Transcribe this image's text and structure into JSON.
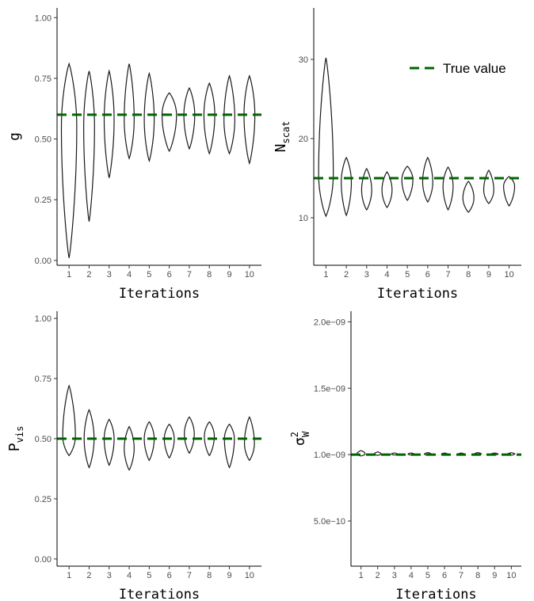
{
  "legend": {
    "label": "True value",
    "color": "#006400"
  },
  "colors": {
    "violin": "#1a1a1a",
    "true_line": "#006400",
    "axis": "#000000"
  },
  "chart_data": [
    {
      "type": "violin",
      "xlabel": "Iterations",
      "ylabel": {
        "main": "g",
        "sub": ""
      },
      "categories": [
        "1",
        "2",
        "3",
        "4",
        "5",
        "6",
        "7",
        "8",
        "9",
        "10"
      ],
      "ylim": [
        -0.02,
        1.04
      ],
      "yticks": [
        0.0,
        0.25,
        0.5,
        0.75,
        1.0
      ],
      "ytick_labels": [
        "0.00",
        "0.25",
        "0.50",
        "0.75",
        "1.00"
      ],
      "true_value": 0.6,
      "violins": [
        {
          "min": 0.01,
          "max": 0.81,
          "mode": 0.55,
          "width": 0.85
        },
        {
          "min": 0.16,
          "max": 0.78,
          "mode": 0.55,
          "width": 0.6
        },
        {
          "min": 0.34,
          "max": 0.78,
          "mode": 0.58,
          "width": 0.55
        },
        {
          "min": 0.42,
          "max": 0.81,
          "mode": 0.58,
          "width": 0.55
        },
        {
          "min": 0.41,
          "max": 0.77,
          "mode": 0.58,
          "width": 0.55
        },
        {
          "min": 0.45,
          "max": 0.69,
          "mode": 0.6,
          "width": 0.8
        },
        {
          "min": 0.46,
          "max": 0.71,
          "mode": 0.6,
          "width": 0.6
        },
        {
          "min": 0.44,
          "max": 0.73,
          "mode": 0.6,
          "width": 0.6
        },
        {
          "min": 0.44,
          "max": 0.76,
          "mode": 0.58,
          "width": 0.6
        },
        {
          "min": 0.4,
          "max": 0.76,
          "mode": 0.6,
          "width": 0.6
        }
      ]
    },
    {
      "type": "violin",
      "xlabel": "Iterations",
      "ylabel": {
        "main": "N",
        "sub": "scat"
      },
      "categories": [
        "1",
        "2",
        "3",
        "4",
        "5",
        "6",
        "7",
        "8",
        "9",
        "10"
      ],
      "ylim": [
        4,
        36.5
      ],
      "yticks": [
        10,
        20,
        30
      ],
      "ytick_labels": [
        "10",
        "20",
        "30"
      ],
      "true_value": 15,
      "violins": [
        {
          "min": 10.2,
          "max": 30.2,
          "mode": 15.5,
          "width": 0.8
        },
        {
          "min": 10.3,
          "max": 17.6,
          "mode": 14.5,
          "width": 0.55
        },
        {
          "min": 11.0,
          "max": 16.2,
          "mode": 13.5,
          "width": 0.55
        },
        {
          "min": 11.3,
          "max": 15.8,
          "mode": 13.5,
          "width": 0.55
        },
        {
          "min": 12.2,
          "max": 16.5,
          "mode": 14.8,
          "width": 0.6
        },
        {
          "min": 12.0,
          "max": 17.6,
          "mode": 14.5,
          "width": 0.55
        },
        {
          "min": 11.0,
          "max": 16.4,
          "mode": 14.0,
          "width": 0.55
        },
        {
          "min": 10.7,
          "max": 14.6,
          "mode": 12.5,
          "width": 0.6
        },
        {
          "min": 11.8,
          "max": 16.0,
          "mode": 13.5,
          "width": 0.55
        },
        {
          "min": 11.5,
          "max": 15.2,
          "mode": 14.0,
          "width": 0.6
        }
      ]
    },
    {
      "type": "violin",
      "xlabel": "Iterations",
      "ylabel": {
        "main": "P",
        "sub": "vis"
      },
      "categories": [
        "1",
        "2",
        "3",
        "4",
        "5",
        "6",
        "7",
        "8",
        "9",
        "10"
      ],
      "ylim": [
        -0.03,
        1.03
      ],
      "yticks": [
        0.0,
        0.25,
        0.5,
        0.75,
        1.0
      ],
      "ytick_labels": [
        "0.00",
        "0.25",
        "0.50",
        "0.75",
        "1.00"
      ],
      "true_value": 0.5,
      "violins": [
        {
          "min": 0.43,
          "max": 0.72,
          "mode": 0.51,
          "width": 0.7
        },
        {
          "min": 0.38,
          "max": 0.62,
          "mode": 0.5,
          "width": 0.55
        },
        {
          "min": 0.39,
          "max": 0.58,
          "mode": 0.5,
          "width": 0.55
        },
        {
          "min": 0.37,
          "max": 0.55,
          "mode": 0.46,
          "width": 0.55
        },
        {
          "min": 0.41,
          "max": 0.57,
          "mode": 0.5,
          "width": 0.55
        },
        {
          "min": 0.42,
          "max": 0.56,
          "mode": 0.5,
          "width": 0.55
        },
        {
          "min": 0.44,
          "max": 0.59,
          "mode": 0.52,
          "width": 0.55
        },
        {
          "min": 0.43,
          "max": 0.57,
          "mode": 0.51,
          "width": 0.55
        },
        {
          "min": 0.38,
          "max": 0.56,
          "mode": 0.5,
          "width": 0.55
        },
        {
          "min": 0.41,
          "max": 0.59,
          "mode": 0.48,
          "width": 0.55
        }
      ]
    },
    {
      "type": "violin",
      "xlabel": "Iterations",
      "ylabel": {
        "main": "σ",
        "sup": "2",
        "sub": "W"
      },
      "categories": [
        "1",
        "2",
        "3",
        "4",
        "5",
        "6",
        "7",
        "8",
        "9",
        "10"
      ],
      "ylim": [
        1.6e-10,
        2.08e-09
      ],
      "yticks": [
        5e-10,
        1e-09,
        1.5e-09,
        2e-09
      ],
      "ytick_labels": [
        "5.0e−10",
        "1.0e−09",
        "1.5e−09",
        "2.0e−09"
      ],
      "true_value": 1e-09,
      "violins": [
        {
          "min": 9.9e-10,
          "max": 1.03e-09,
          "mode": 1.005e-09,
          "width": 0.55
        },
        {
          "min": 9.95e-10,
          "max": 1.02e-09,
          "mode": 1.005e-09,
          "width": 0.45
        },
        {
          "min": 9.97e-10,
          "max": 1.012e-09,
          "mode": 1.004e-09,
          "width": 0.4
        },
        {
          "min": 9.97e-10,
          "max": 1.012e-09,
          "mode": 1.004e-09,
          "width": 0.4
        },
        {
          "min": 9.95e-10,
          "max": 1.015e-09,
          "mode": 1.004e-09,
          "width": 0.45
        },
        {
          "min": 9.97e-10,
          "max": 1.012e-09,
          "mode": 1.004e-09,
          "width": 0.4
        },
        {
          "min": 9.97e-10,
          "max": 1.012e-09,
          "mode": 1.004e-09,
          "width": 0.4
        },
        {
          "min": 9.96e-10,
          "max": 1.015e-09,
          "mode": 1.005e-09,
          "width": 0.45
        },
        {
          "min": 9.97e-10,
          "max": 1.012e-09,
          "mode": 1.004e-09,
          "width": 0.45
        },
        {
          "min": 9.96e-10,
          "max": 1.014e-09,
          "mode": 1.005e-09,
          "width": 0.45
        }
      ]
    }
  ]
}
